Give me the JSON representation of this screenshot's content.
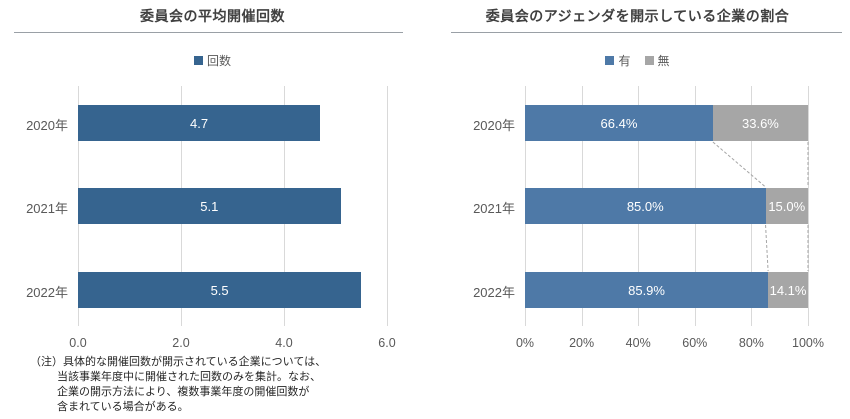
{
  "colors": {
    "bar_blue_left": "#36648f",
    "bar_blue_right": "#4e79a7",
    "bar_gray": "#a6a6a6",
    "grid": "#d9d9d9",
    "axis_text": "#595959",
    "title_text": "#404040",
    "connector": "#a6a6a6",
    "segment_label": "#ffffff"
  },
  "chart_data": [
    {
      "type": "bar",
      "orientation": "horizontal",
      "stacked": false,
      "title": "委員会の平均開催回数",
      "categories": [
        "2020年",
        "2021年",
        "2022年"
      ],
      "series": [
        {
          "name": "回数",
          "color": "#36648f",
          "values": [
            4.7,
            5.1,
            5.5
          ],
          "labels": [
            "4.7",
            "5.1",
            "5.5"
          ]
        }
      ],
      "xlim": [
        0,
        6
      ],
      "xticks": [
        {
          "value": 0,
          "label": "0.0"
        },
        {
          "value": 2,
          "label": "2.0"
        },
        {
          "value": 4,
          "label": "4.0"
        },
        {
          "value": 6,
          "label": "6.0"
        }
      ],
      "legend_position": "top",
      "grid": true,
      "note_lines": [
        "（注）具体的な開催回数が開示されている企業については、",
        "当該事業年度中に開催された回数のみを集計。なお、",
        "企業の開示方法により、複数事業年度の開催回数が",
        "含まれている場合がある。"
      ]
    },
    {
      "type": "bar",
      "orientation": "horizontal",
      "stacked": true,
      "title": "委員会のアジェンダを開示している企業の割合",
      "categories": [
        "2020年",
        "2021年",
        "2022年"
      ],
      "series": [
        {
          "name": "有",
          "color": "#4e79a7",
          "values": [
            66.4,
            85.0,
            85.9
          ],
          "labels": [
            "66.4%",
            "85.0%",
            "85.9%"
          ]
        },
        {
          "name": "無",
          "color": "#a6a6a6",
          "values": [
            33.6,
            15.0,
            14.1
          ],
          "labels": [
            "33.6%",
            "15.0%",
            "14.1%"
          ]
        }
      ],
      "xlim": [
        0,
        100
      ],
      "xticks": [
        {
          "value": 0,
          "label": "0%"
        },
        {
          "value": 20,
          "label": "20%"
        },
        {
          "value": 40,
          "label": "40%"
        },
        {
          "value": 60,
          "label": "60%"
        },
        {
          "value": 80,
          "label": "80%"
        },
        {
          "value": 100,
          "label": "100%"
        }
      ],
      "legend_position": "top",
      "grid": true,
      "connectors": true
    }
  ]
}
